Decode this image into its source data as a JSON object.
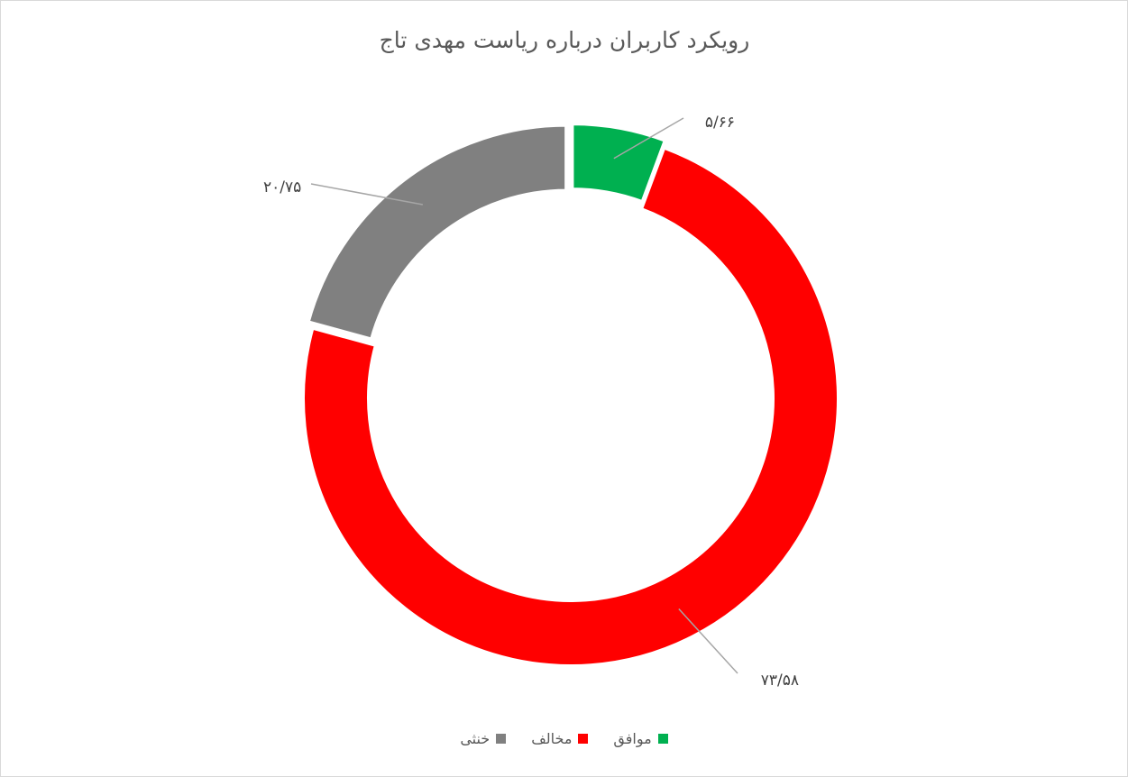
{
  "chart_data": {
    "type": "pie",
    "title": "رویکرد کاربران درباره ریاست مهدی تاج",
    "donut": true,
    "categories": [
      "موافق",
      "مخالف",
      "خنثی"
    ],
    "values": [
      5.66,
      73.58,
      20.75
    ],
    "data_labels": [
      "۵/۶۶",
      "۷۳/۵۸",
      "۲۰/۷۵"
    ],
    "colors": [
      "#00b050",
      "#ff0000",
      "#808080"
    ],
    "legend_position": "bottom"
  }
}
